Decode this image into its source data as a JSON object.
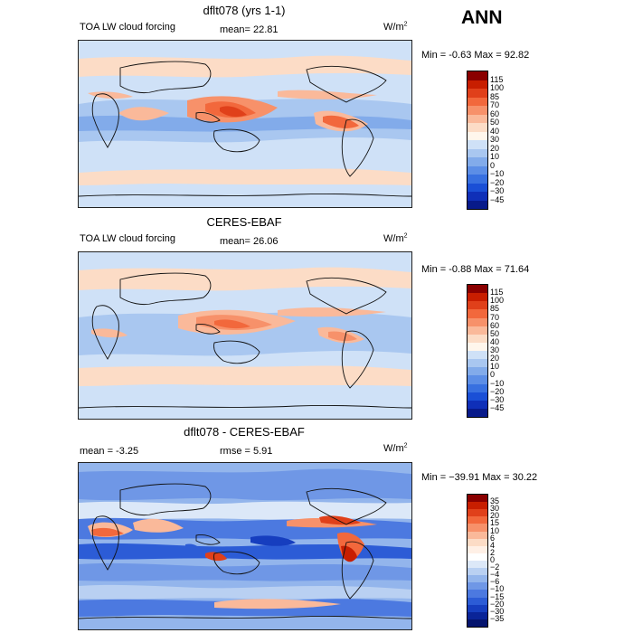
{
  "header": {
    "ann_label": "ANN"
  },
  "panels": [
    {
      "title": "dflt078 (yrs 1-1)",
      "left_label": "TOA LW cloud forcing",
      "stat1": "mean=  22.81",
      "stat2": "",
      "units": "W/m",
      "units_sup": "2",
      "minmax": "Min =  -0.63  Max =  92.82",
      "colorbar_labels": [
        "115",
        "100",
        "85",
        "70",
        "60",
        "50",
        "40",
        "30",
        "20",
        "10",
        "0",
        "−10",
        "−20",
        "−30",
        "−45"
      ],
      "colorbar_colors": [
        "#8a0000",
        "#c81e00",
        "#e0401a",
        "#f2683c",
        "#f7916a",
        "#fab99a",
        "#fcdcc6",
        "#fff6ec",
        "#cfe1f7",
        "#a9c7f0",
        "#82abea",
        "#5c8ee6",
        "#3870e0",
        "#1a4fd6",
        "#0f2fb8",
        "#081a8a"
      ]
    },
    {
      "title": "CERES-EBAF",
      "left_label": "TOA LW cloud forcing",
      "stat1": "mean=  26.06",
      "stat2": "",
      "units": "W/m",
      "units_sup": "2",
      "minmax": "Min =  -0.88  Max =  71.64",
      "colorbar_labels": [
        "115",
        "100",
        "85",
        "70",
        "60",
        "50",
        "40",
        "30",
        "20",
        "10",
        "0",
        "−10",
        "−20",
        "−30",
        "−45"
      ],
      "colorbar_colors": [
        "#8a0000",
        "#c81e00",
        "#e0401a",
        "#f2683c",
        "#f7916a",
        "#fab99a",
        "#fcdcc6",
        "#fff6ec",
        "#cfe1f7",
        "#a9c7f0",
        "#82abea",
        "#5c8ee6",
        "#3870e0",
        "#1a4fd6",
        "#0f2fb8",
        "#081a8a"
      ]
    },
    {
      "title": "dflt078 - CERES-EBAF",
      "left_label": "mean =   -3.25",
      "stat1": "rmse =   5.91",
      "stat2": "",
      "units": "W/m",
      "units_sup": "2",
      "minmax": "Min = −39.91  Max =  30.22",
      "colorbar_labels": [
        "35",
        "30",
        "20",
        "15",
        "10",
        "6",
        "4",
        "2",
        "0",
        "−2",
        "−4",
        "−6",
        "−10",
        "−15",
        "−20",
        "−30",
        "−35"
      ],
      "colorbar_colors": [
        "#8a0000",
        "#c81e00",
        "#e0401a",
        "#f2683c",
        "#f7916a",
        "#fab99a",
        "#fcdcc6",
        "#fff0e6",
        "#ffffff",
        "#dce8f8",
        "#b9d0f2",
        "#93b5ec",
        "#6f97e6",
        "#4c79e0",
        "#2c5cd6",
        "#163ebf",
        "#0a2498",
        "#05146e"
      ]
    }
  ]
}
